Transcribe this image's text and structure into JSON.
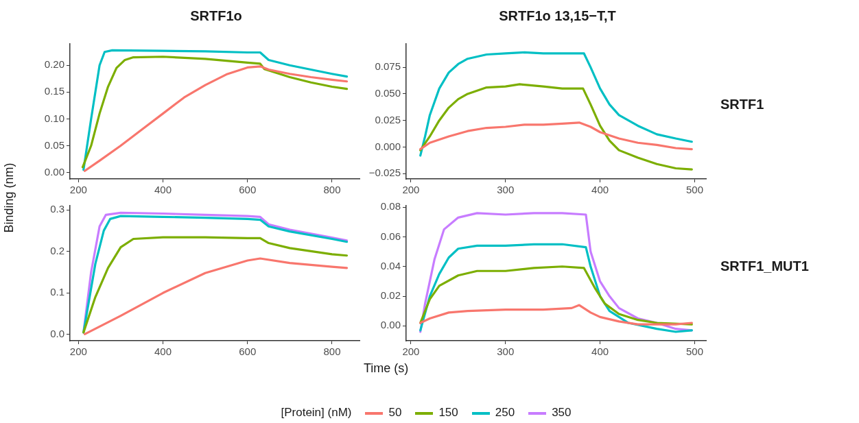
{
  "chart_data": [
    {
      "type": "line",
      "title": "SRTF1o",
      "ylabel": "Binding (nm)",
      "legend": "bottom",
      "legend_title": "[Protein] (nM)",
      "grid": false,
      "xlim": [
        180,
        865
      ],
      "xticks": [
        200,
        400,
        600,
        800
      ],
      "ylim": [
        -0.012,
        0.24
      ],
      "yticks": [
        {
          "value": 0,
          "label": "0.00"
        },
        {
          "value": 0.05,
          "label": "0.05"
        },
        {
          "value": 0.1,
          "label": "0.10"
        },
        {
          "value": 0.15,
          "label": "0.15"
        },
        {
          "value": 0.2,
          "label": "0.20"
        }
      ],
      "series": [
        {
          "name": "50",
          "color": "#f8766d",
          "x": [
            215,
            250,
            300,
            350,
            400,
            450,
            500,
            550,
            600,
            630,
            650,
            700,
            750,
            800,
            835
          ],
          "values": [
            0.003,
            0.022,
            0.05,
            0.08,
            0.11,
            0.14,
            0.163,
            0.183,
            0.196,
            0.198,
            0.192,
            0.184,
            0.178,
            0.173,
            0.17
          ]
        },
        {
          "name": "150",
          "color": "#7cae00",
          "x": [
            210,
            230,
            250,
            270,
            290,
            310,
            330,
            400,
            500,
            600,
            630,
            640,
            700,
            750,
            800,
            835
          ],
          "values": [
            0.01,
            0.05,
            0.11,
            0.16,
            0.195,
            0.21,
            0.215,
            0.216,
            0.212,
            0.205,
            0.203,
            0.193,
            0.178,
            0.168,
            0.16,
            0.156
          ]
        },
        {
          "name": "250",
          "color": "#00bfc4",
          "x": [
            212,
            230,
            250,
            262,
            280,
            400,
            500,
            600,
            630,
            650,
            700,
            750,
            800,
            835
          ],
          "values": [
            0.005,
            0.1,
            0.2,
            0.225,
            0.228,
            0.227,
            0.226,
            0.224,
            0.224,
            0.21,
            0.2,
            0.192,
            0.184,
            0.179
          ]
        }
      ]
    },
    {
      "type": "line",
      "title": "SRTF1o 13,15−T,T",
      "y2label": "SRTF1",
      "grid": false,
      "xlim": [
        195,
        512
      ],
      "xticks": [
        200,
        300,
        400,
        500
      ],
      "ylim": [
        -0.03,
        0.097
      ],
      "yticks": [
        {
          "value": -0.025,
          "label": "−0.025"
        },
        {
          "value": 0,
          "label": "0.000"
        },
        {
          "value": 0.025,
          "label": "0.025"
        },
        {
          "value": 0.05,
          "label": "0.050"
        },
        {
          "value": 0.075,
          "label": "0.075"
        }
      ],
      "series": [
        {
          "name": "50",
          "color": "#f8766d",
          "x": [
            210,
            220,
            240,
            260,
            280,
            300,
            320,
            340,
            360,
            378,
            390,
            400,
            420,
            440,
            460,
            480,
            497
          ],
          "values": [
            -0.002,
            0.004,
            0.01,
            0.015,
            0.018,
            0.019,
            0.021,
            0.021,
            0.022,
            0.023,
            0.019,
            0.014,
            0.008,
            0.004,
            0.002,
            -0.001,
            -0.002
          ]
        },
        {
          "name": "150",
          "color": "#7cae00",
          "x": [
            210,
            220,
            230,
            240,
            250,
            260,
            280,
            300,
            315,
            340,
            360,
            382,
            390,
            400,
            410,
            420,
            440,
            460,
            480,
            497
          ],
          "values": [
            -0.003,
            0.01,
            0.025,
            0.037,
            0.045,
            0.05,
            0.056,
            0.057,
            0.059,
            0.057,
            0.055,
            0.055,
            0.04,
            0.02,
            0.006,
            -0.003,
            -0.01,
            -0.016,
            -0.02,
            -0.021
          ]
        },
        {
          "name": "250",
          "color": "#00bfc4",
          "x": [
            210,
            215,
            220,
            230,
            240,
            250,
            260,
            280,
            300,
            320,
            340,
            360,
            383,
            390,
            400,
            410,
            420,
            440,
            460,
            480,
            497
          ],
          "values": [
            -0.008,
            0.01,
            0.03,
            0.055,
            0.07,
            0.078,
            0.083,
            0.087,
            0.088,
            0.089,
            0.088,
            0.088,
            0.088,
            0.075,
            0.055,
            0.04,
            0.03,
            0.02,
            0.012,
            0.008,
            0.005
          ]
        }
      ]
    },
    {
      "type": "line",
      "xlabel": "Time (s)",
      "grid": false,
      "xlim": [
        180,
        865
      ],
      "xticks": [
        200,
        400,
        600,
        800
      ],
      "ylim": [
        -0.015,
        0.31
      ],
      "yticks": [
        {
          "value": 0,
          "label": "0.0"
        },
        {
          "value": 0.1,
          "label": "0.1"
        },
        {
          "value": 0.2,
          "label": "0.2"
        },
        {
          "value": 0.3,
          "label": "0.3"
        }
      ],
      "series": [
        {
          "name": "50",
          "color": "#f8766d",
          "x": [
            215,
            300,
            400,
            500,
            600,
            630,
            700,
            800,
            835
          ],
          "values": [
            0.001,
            0.045,
            0.1,
            0.148,
            0.178,
            0.183,
            0.172,
            0.163,
            0.16
          ]
        },
        {
          "name": "150",
          "color": "#7cae00",
          "x": [
            212,
            240,
            270,
            300,
            330,
            400,
            500,
            600,
            630,
            650,
            700,
            800,
            835
          ],
          "values": [
            0.005,
            0.09,
            0.16,
            0.21,
            0.23,
            0.234,
            0.234,
            0.232,
            0.232,
            0.22,
            0.208,
            0.193,
            0.19
          ]
        },
        {
          "name": "250",
          "color": "#00bfc4",
          "x": [
            212,
            240,
            260,
            275,
            300,
            400,
            500,
            600,
            630,
            650,
            700,
            800,
            835
          ],
          "values": [
            0.005,
            0.17,
            0.25,
            0.278,
            0.285,
            0.283,
            0.281,
            0.278,
            0.276,
            0.26,
            0.248,
            0.23,
            0.223
          ]
        },
        {
          "name": "350",
          "color": "#c77cff",
          "x": [
            212,
            230,
            250,
            265,
            300,
            400,
            500,
            600,
            630,
            650,
            700,
            800,
            835
          ],
          "values": [
            0.005,
            0.15,
            0.26,
            0.288,
            0.293,
            0.291,
            0.288,
            0.285,
            0.283,
            0.265,
            0.252,
            0.233,
            0.226
          ]
        }
      ]
    },
    {
      "type": "line",
      "y2label": "SRTF1_MUT1",
      "grid": false,
      "xlim": [
        195,
        512
      ],
      "xticks": [
        200,
        300,
        400,
        500
      ],
      "ylim": [
        -0.01,
        0.081
      ],
      "yticks": [
        {
          "value": 0,
          "label": "0.00"
        },
        {
          "value": 0.02,
          "label": "0.02"
        },
        {
          "value": 0.04,
          "label": "0.04"
        },
        {
          "value": 0.06,
          "label": "0.06"
        },
        {
          "value": 0.08,
          "label": "0.08"
        }
      ],
      "series": [
        {
          "name": "50",
          "color": "#f8766d",
          "x": [
            210,
            220,
            240,
            260,
            300,
            340,
            370,
            378,
            390,
            400,
            420,
            440,
            460,
            480,
            497
          ],
          "values": [
            0.002,
            0.005,
            0.009,
            0.01,
            0.011,
            0.011,
            0.012,
            0.014,
            0.009,
            0.006,
            0.003,
            0.001,
            0.001,
            0.001,
            0.002
          ]
        },
        {
          "name": "150",
          "color": "#7cae00",
          "x": [
            210,
            220,
            230,
            250,
            270,
            300,
            330,
            360,
            383,
            395,
            405,
            420,
            440,
            460,
            497
          ],
          "values": [
            0.002,
            0.018,
            0.027,
            0.034,
            0.037,
            0.037,
            0.039,
            0.04,
            0.039,
            0.025,
            0.015,
            0.008,
            0.004,
            0.002,
            0.001
          ]
        },
        {
          "name": "250",
          "color": "#00bfc4",
          "x": [
            210,
            220,
            230,
            240,
            250,
            270,
            300,
            330,
            360,
            385,
            390,
            400,
            410,
            420,
            430,
            460,
            480,
            497
          ],
          "values": [
            -0.003,
            0.02,
            0.035,
            0.046,
            0.052,
            0.054,
            0.054,
            0.055,
            0.055,
            0.053,
            0.04,
            0.02,
            0.01,
            0.006,
            0.002,
            -0.002,
            -0.004,
            -0.003
          ]
        },
        {
          "name": "350",
          "color": "#c77cff",
          "x": [
            210,
            215,
            225,
            235,
            250,
            270,
            300,
            330,
            360,
            385,
            390,
            400,
            410,
            420,
            440,
            460,
            480,
            497
          ],
          "values": [
            -0.004,
            0.015,
            0.045,
            0.065,
            0.073,
            0.076,
            0.075,
            0.076,
            0.076,
            0.075,
            0.05,
            0.03,
            0.02,
            0.012,
            0.005,
            0.002,
            -0.002,
            -0.003
          ]
        }
      ]
    }
  ]
}
